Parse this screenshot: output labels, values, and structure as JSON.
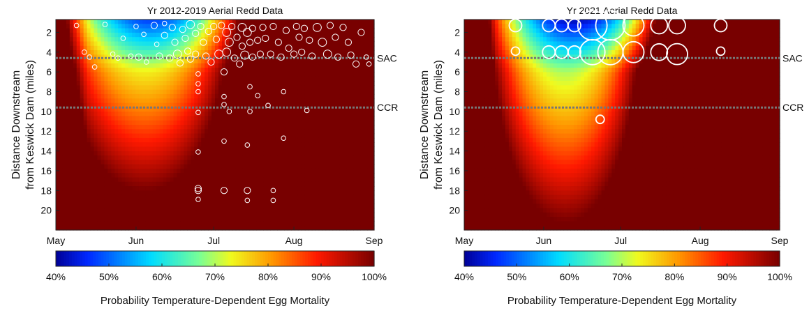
{
  "colorbar": {
    "tick_labels": [
      "40%",
      "50%",
      "60%",
      "70%",
      "80%",
      "90%",
      "100%"
    ],
    "label": "Probability Temperature-Dependent Egg Mortality"
  },
  "reference_lines": [
    {
      "label": "SAC",
      "y": 4.6
    },
    {
      "label": "CCR",
      "y": 9.6
    }
  ],
  "chart_data": [
    {
      "type": "scatter",
      "title": "Yr 2012-2019 Aerial Redd Data",
      "ylabel": "Distance Downstream\nfrom Keswick Dam (miles)",
      "xlabel": "",
      "x_tick_labels": [
        "May",
        "Jun",
        "Jul",
        "Aug",
        "Sep"
      ],
      "y_ticks": [
        2,
        4,
        6,
        8,
        10,
        12,
        14,
        16,
        18,
        20
      ],
      "xlim": [
        "2000-05-01",
        "2000-09-01"
      ],
      "ylim": [
        22,
        0.7
      ],
      "background": "heatmap of probability of temperature-dependent egg mortality (40%-100%)",
      "series": [
        {
          "values": [
            [
              "2000-05-09",
              1.3,
              1
            ],
            [
              "2000-05-12",
              4.0,
              1
            ],
            [
              "2000-05-14",
              4.5,
              1
            ],
            [
              "2000-05-16",
              5.5,
              1
            ],
            [
              "2000-05-20",
              1.2,
              1
            ],
            [
              "2000-05-23",
              4.2,
              1
            ],
            [
              "2000-05-25",
              4.6,
              1
            ],
            [
              "2000-05-27",
              2.6,
              1
            ],
            [
              "2000-05-30",
              4.4,
              1
            ],
            [
              "2000-06-01",
              1.4,
              1
            ],
            [
              "2000-06-02",
              4.5,
              2
            ],
            [
              "2000-06-04",
              2.2,
              1
            ],
            [
              "2000-06-05",
              5.0,
              1
            ],
            [
              "2000-06-08",
              1.3,
              2
            ],
            [
              "2000-06-09",
              3.2,
              1
            ],
            [
              "2000-06-10",
              4.4,
              2
            ],
            [
              "2000-06-12",
              1.1,
              1
            ],
            [
              "2000-06-12",
              2.3,
              2
            ],
            [
              "2000-06-14",
              4.6,
              2
            ],
            [
              "2000-06-15",
              1.5,
              2
            ],
            [
              "2000-06-16",
              3.0,
              2
            ],
            [
              "2000-06-17",
              4.2,
              3
            ],
            [
              "2000-06-18",
              5.1,
              2
            ],
            [
              "2000-06-19",
              1.7,
              2
            ],
            [
              "2000-06-20",
              2.6,
              2
            ],
            [
              "2000-06-21",
              3.9,
              2
            ],
            [
              "2000-06-22",
              1.2,
              3
            ],
            [
              "2000-06-22",
              4.7,
              2
            ],
            [
              "2000-06-24",
              2.1,
              2
            ],
            [
              "2000-06-24",
              4.2,
              2
            ],
            [
              "2000-06-25",
              6.2,
              1
            ],
            [
              "2000-06-25",
              7.2,
              1
            ],
            [
              "2000-06-25",
              8.0,
              1
            ],
            [
              "2000-06-25",
              10.1,
              1
            ],
            [
              "2000-06-25",
              14.1,
              1
            ],
            [
              "2000-06-25",
              17.8,
              2
            ],
            [
              "2000-06-25",
              18.0,
              2
            ],
            [
              "2000-06-25",
              18.9,
              1
            ],
            [
              "2000-06-26",
              1.4,
              2
            ],
            [
              "2000-06-27",
              3.0,
              2
            ],
            [
              "2000-06-28",
              4.4,
              2
            ],
            [
              "2000-06-29",
              1.9,
              2
            ],
            [
              "2000-06-30",
              5.0,
              2
            ],
            [
              "2000-07-01",
              1.4,
              2
            ],
            [
              "2000-07-02",
              2.7,
              2
            ],
            [
              "2000-07-03",
              4.2,
              3
            ],
            [
              "2000-07-04",
              1.3,
              2
            ],
            [
              "2000-07-05",
              6.0,
              2
            ],
            [
              "2000-07-05",
              8.5,
              1
            ],
            [
              "2000-07-05",
              9.3,
              1
            ],
            [
              "2000-07-05",
              13.0,
              1
            ],
            [
              "2000-07-05",
              18.0,
              2
            ],
            [
              "2000-07-06",
              2.0,
              3
            ],
            [
              "2000-07-06",
              4.0,
              3
            ],
            [
              "2000-07-07",
              3.0,
              3
            ],
            [
              "2000-07-07",
              10.0,
              1
            ],
            [
              "2000-07-08",
              1.4,
              2
            ],
            [
              "2000-07-09",
              4.6,
              2
            ],
            [
              "2000-07-10",
              2.5,
              2
            ],
            [
              "2000-07-11",
              5.2,
              2
            ],
            [
              "2000-07-12",
              1.5,
              3
            ],
            [
              "2000-07-12",
              3.4,
              2
            ],
            [
              "2000-07-13",
              4.3,
              3
            ],
            [
              "2000-07-14",
              2.0,
              3
            ],
            [
              "2000-07-14",
              13.4,
              1
            ],
            [
              "2000-07-14",
              18.0,
              2
            ],
            [
              "2000-07-14",
              19.0,
              1
            ],
            [
              "2000-07-15",
              3.0,
              2
            ],
            [
              "2000-07-15",
              7.5,
              1
            ],
            [
              "2000-07-15",
              10.0,
              1
            ],
            [
              "2000-07-16",
              4.5,
              2
            ],
            [
              "2000-07-16",
              1.6,
              2
            ],
            [
              "2000-07-18",
              2.8,
              2
            ],
            [
              "2000-07-18",
              8.4,
              1
            ],
            [
              "2000-07-19",
              4.2,
              2
            ],
            [
              "2000-07-20",
              1.5,
              2
            ],
            [
              "2000-07-21",
              2.6,
              2
            ],
            [
              "2000-07-22",
              9.4,
              1
            ],
            [
              "2000-07-23",
              4.2,
              2
            ],
            [
              "2000-07-24",
              1.4,
              2
            ],
            [
              "2000-07-24",
              18.0,
              1
            ],
            [
              "2000-07-24",
              19.0,
              1
            ],
            [
              "2000-07-26",
              3.0,
              2
            ],
            [
              "2000-07-27",
              4.5,
              2
            ],
            [
              "2000-07-28",
              12.7,
              1
            ],
            [
              "2000-07-28",
              8.0,
              1
            ],
            [
              "2000-07-29",
              1.8,
              2
            ],
            [
              "2000-07-30",
              3.6,
              2
            ],
            [
              "2000-08-01",
              4.2,
              2
            ],
            [
              "2000-08-02",
              1.4,
              2
            ],
            [
              "2000-08-03",
              2.5,
              2
            ],
            [
              "2000-08-04",
              4.0,
              2
            ],
            [
              "2000-08-05",
              1.6,
              2
            ],
            [
              "2000-08-06",
              9.9,
              1
            ],
            [
              "2000-08-07",
              2.8,
              2
            ],
            [
              "2000-08-08",
              4.4,
              2
            ],
            [
              "2000-08-10",
              1.5,
              3
            ],
            [
              "2000-08-12",
              3.0,
              3
            ],
            [
              "2000-08-14",
              4.2,
              3
            ],
            [
              "2000-08-15",
              1.3,
              2
            ],
            [
              "2000-08-17",
              2.5,
              2
            ],
            [
              "2000-08-18",
              4.5,
              2
            ],
            [
              "2000-08-20",
              1.5,
              2
            ],
            [
              "2000-08-22",
              3.0,
              2
            ],
            [
              "2000-08-23",
              4.3,
              2
            ],
            [
              "2000-08-25",
              5.2,
              2
            ],
            [
              "2000-08-27",
              2.0,
              2
            ],
            [
              "2000-08-29",
              4.5,
              1
            ],
            [
              "2000-08-30",
              5.2,
              1
            ]
          ]
        }
      ]
    },
    {
      "type": "scatter",
      "title": "Yr 2021 Aerial Redd Data",
      "ylabel": "Distance Downstream\nfrom Keswick Dam (miles)",
      "xlabel": "",
      "x_tick_labels": [
        "May",
        "Jun",
        "Jul",
        "Aug",
        "Sep"
      ],
      "y_ticks": [
        2,
        4,
        6,
        8,
        10,
        12,
        14,
        16,
        18,
        20
      ],
      "xlim": [
        "2000-05-01",
        "2000-09-01"
      ],
      "ylim": [
        22,
        0.7
      ],
      "background": "heatmap of probability of temperature-dependent egg mortality (40%-100%)",
      "series": [
        {
          "values": [
            [
              "2000-05-21",
              1.3,
              2
            ],
            [
              "2000-05-21",
              3.9,
              1
            ],
            [
              "2000-06-03",
              1.3,
              2
            ],
            [
              "2000-06-03",
              4.0,
              2
            ],
            [
              "2000-06-08",
              1.3,
              2
            ],
            [
              "2000-06-08",
              4.0,
              2
            ],
            [
              "2000-06-13",
              1.3,
              2
            ],
            [
              "2000-06-13",
              4.0,
              2
            ],
            [
              "2000-06-20",
              1.3,
              6
            ],
            [
              "2000-06-20",
              4.0,
              5
            ],
            [
              "2000-06-23",
              10.8,
              1
            ],
            [
              "2000-06-27",
              1.3,
              6
            ],
            [
              "2000-06-27",
              4.0,
              5
            ],
            [
              "2000-07-06",
              1.3,
              4
            ],
            [
              "2000-07-06",
              4.0,
              4
            ],
            [
              "2000-07-16",
              1.3,
              3
            ],
            [
              "2000-07-16",
              4.0,
              3
            ],
            [
              "2000-07-23",
              1.3,
              3
            ],
            [
              "2000-07-23",
              4.2,
              4
            ],
            [
              "2000-08-09",
              1.3,
              2
            ],
            [
              "2000-08-09",
              3.9,
              1
            ]
          ]
        }
      ]
    }
  ]
}
